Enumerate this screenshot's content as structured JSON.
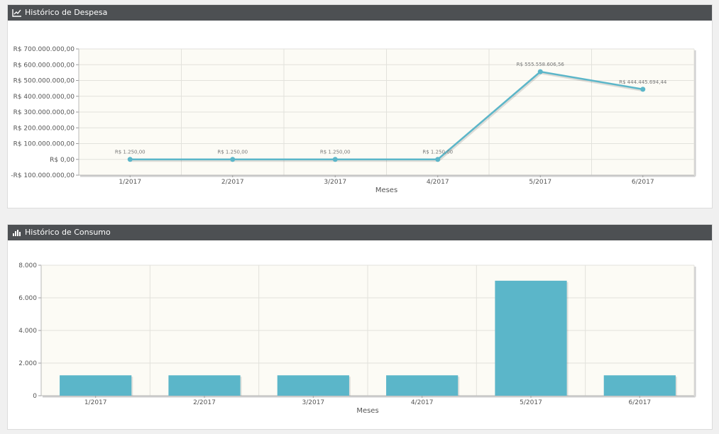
{
  "panels": {
    "despesa": {
      "title": "Histórico de Despesa",
      "icon": "line-chart-icon"
    },
    "consumo": {
      "title": "Histórico de Consumo",
      "icon": "bar-chart-icon"
    }
  },
  "colors": {
    "series": "#5bb6c9",
    "plot_bg": "#fcfbf5",
    "header_bg": "#4d5053"
  },
  "chart_data": [
    {
      "type": "line",
      "categories": [
        "1/2017",
        "2/2017",
        "3/2017",
        "4/2017",
        "5/2017",
        "6/2017"
      ],
      "values": [
        1250,
        1250,
        1250,
        1250,
        555558606.56,
        444445694.44
      ],
      "data_labels": [
        "R$ 1.250,00",
        "R$ 1.250,00",
        "R$ 1.250,00",
        "R$ 1.250,00",
        "R$ 555.558.606,56",
        "R$ 444.445.694,44"
      ],
      "xlabel": "Meses",
      "ylabel": "",
      "ylim": [
        -100000000,
        700000000
      ],
      "yticks": [
        -100000000,
        0,
        100000000,
        200000000,
        300000000,
        400000000,
        500000000,
        600000000,
        700000000
      ],
      "ytick_labels": [
        "-R$ 100.000.000,00",
        "R$ 0,00",
        "R$ 100.000.000,00",
        "R$ 200.000.000,00",
        "R$ 300.000.000,00",
        "R$ 400.000.000,00",
        "R$ 500.000.000,00",
        "R$ 600.000.000,00",
        "R$ 700.000.000,00"
      ],
      "grid": true
    },
    {
      "type": "bar",
      "categories": [
        "1/2017",
        "2/2017",
        "3/2017",
        "4/2017",
        "5/2017",
        "6/2017"
      ],
      "values": [
        1250,
        1250,
        1250,
        1250,
        7050,
        1250
      ],
      "xlabel": "Meses",
      "ylabel": "",
      "ylim": [
        0,
        8000
      ],
      "yticks": [
        0,
        2000,
        4000,
        6000,
        8000
      ],
      "ytick_labels": [
        "0",
        "2.000",
        "4.000",
        "6.000",
        "8.000"
      ],
      "grid": true
    }
  ]
}
